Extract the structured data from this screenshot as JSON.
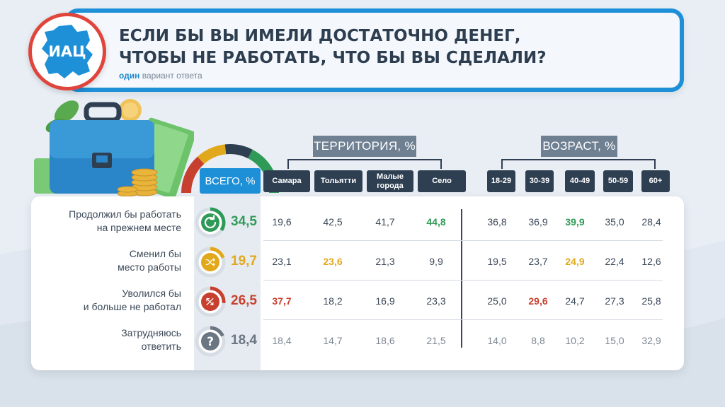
{
  "header": {
    "title_line1": "ЕСЛИ БЫ ВЫ ИМЕЛИ ДОСТАТОЧНО ДЕНЕГ,",
    "title_line2": "ЧТОБЫ НЕ РАБОТАТЬ, ЧТО БЫ ВЫ СДЕЛАЛИ?",
    "subtitle_bold": "один",
    "subtitle_rest": " вариант ответа",
    "logo_text": "ИАЦ"
  },
  "colors": {
    "accent": "#1e90d8",
    "dark": "#2f3f52",
    "green": "#2f9a57",
    "yellow": "#e2a81b",
    "red": "#c7402f",
    "gray": "#6b7683"
  },
  "chart_data": {
    "type": "table",
    "total_header": "ВСЕГО, %",
    "groups": [
      {
        "name": "ТЕРРИТОРИЯ, %",
        "columns": [
          "Самара",
          "Тольятти",
          "Малые города",
          "Село"
        ]
      },
      {
        "name": "ВОЗРАСТ, %",
        "columns": [
          "18-29",
          "30-39",
          "40-49",
          "50-59",
          "60+"
        ]
      }
    ],
    "rows": [
      {
        "label_line1": "Продолжил бы работать",
        "label_line2": "на прежнем месте",
        "icon": "refresh-icon",
        "color": "#2f9a57",
        "total": "34,5",
        "values": [
          "19,6",
          "42,5",
          "41,7",
          "44,8",
          "36,8",
          "36,9",
          "39,9",
          "35,0",
          "28,4"
        ],
        "highlight": [
          3,
          6
        ]
      },
      {
        "label_line1": "Сменил бы",
        "label_line2": "место работы",
        "icon": "shuffle-icon",
        "color": "#e2a81b",
        "total": "19,7",
        "values": [
          "23,1",
          "23,6",
          "21,3",
          "9,9",
          "19,5",
          "23,7",
          "24,9",
          "22,4",
          "12,6"
        ],
        "highlight": [
          1,
          6
        ]
      },
      {
        "label_line1": "Уволился бы",
        "label_line2": "и больше не работал",
        "icon": "exit-arrows-icon",
        "color": "#c7402f",
        "total": "26,5",
        "values": [
          "37,7",
          "18,2",
          "16,9",
          "23,3",
          "25,0",
          "29,6",
          "24,7",
          "27,3",
          "25,8"
        ],
        "highlight": [
          0,
          5
        ]
      },
      {
        "label_line1": "Затрудняюсь",
        "label_line2": "ответить",
        "icon": "question-icon",
        "color": "#6b7683",
        "total": "18,4",
        "values": [
          "18,4",
          "14,7",
          "18,6",
          "21,5",
          "14,0",
          "8,8",
          "10,2",
          "15,0",
          "32,9"
        ],
        "highlight": []
      }
    ],
    "gauge_shares": [
      34.5,
      19.7,
      26.5,
      18.4
    ]
  }
}
